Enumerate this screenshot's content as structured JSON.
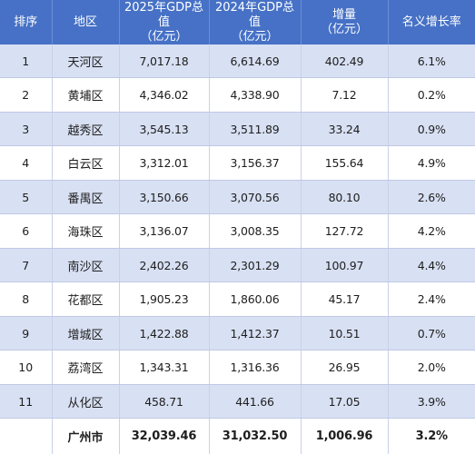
{
  "header": {
    "rank": "排序",
    "district": "地区",
    "gdp2025_line1": "2025年GDP总值",
    "gdp2025_line2": "（亿元）",
    "gdp2024_line1": "2024年GDP总值",
    "gdp2024_line2": "（亿元）",
    "increase_line1": "增量",
    "increase_line2": "（亿元）",
    "growth": "名义增长率"
  },
  "rows": [
    {
      "rank": "1",
      "district": "天河区",
      "gdp2025": "7,017.18",
      "gdp2024": "6,614.69",
      "increase": "402.49",
      "growth": "6.1%"
    },
    {
      "rank": "2",
      "district": "黄埔区",
      "gdp2025": "4,346.02",
      "gdp2024": "4,338.90",
      "increase": "7.12",
      "growth": "0.2%"
    },
    {
      "rank": "3",
      "district": "越秀区",
      "gdp2025": "3,545.13",
      "gdp2024": "3,511.89",
      "increase": "33.24",
      "growth": "0.9%"
    },
    {
      "rank": "4",
      "district": "白云区",
      "gdp2025": "3,312.01",
      "gdp2024": "3,156.37",
      "increase": "155.64",
      "growth": "4.9%"
    },
    {
      "rank": "5",
      "district": "番禺区",
      "gdp2025": "3,150.66",
      "gdp2024": "3,070.56",
      "increase": "80.10",
      "growth": "2.6%"
    },
    {
      "rank": "6",
      "district": "海珠区",
      "gdp2025": "3,136.07",
      "gdp2024": "3,008.35",
      "increase": "127.72",
      "growth": "4.2%"
    },
    {
      "rank": "7",
      "district": "南沙区",
      "gdp2025": "2,402.26",
      "gdp2024": "2,301.29",
      "increase": "100.97",
      "growth": "4.4%"
    },
    {
      "rank": "8",
      "district": "花都区",
      "gdp2025": "1,905.23",
      "gdp2024": "1,860.06",
      "increase": "45.17",
      "growth": "2.4%"
    },
    {
      "rank": "9",
      "district": "增城区",
      "gdp2025": "1,422.88",
      "gdp2024": "1,412.37",
      "increase": "10.51",
      "growth": "0.7%"
    },
    {
      "rank": "10",
      "district": "荔湾区",
      "gdp2025": "1,343.31",
      "gdp2024": "1,316.36",
      "increase": "26.95",
      "growth": "2.0%"
    },
    {
      "rank": "11",
      "district": "从化区",
      "gdp2025": "458.71",
      "gdp2024": "441.66",
      "increase": "17.05",
      "growth": "3.9%"
    }
  ],
  "total": {
    "rank": "",
    "district": "广州市",
    "gdp2025": "32,039.46",
    "gdp2024": "31,032.50",
    "increase": "1,006.96",
    "growth": "3.2%"
  },
  "colors": {
    "header_bg": "#4671c6",
    "stripe": "#d8e0f3"
  }
}
